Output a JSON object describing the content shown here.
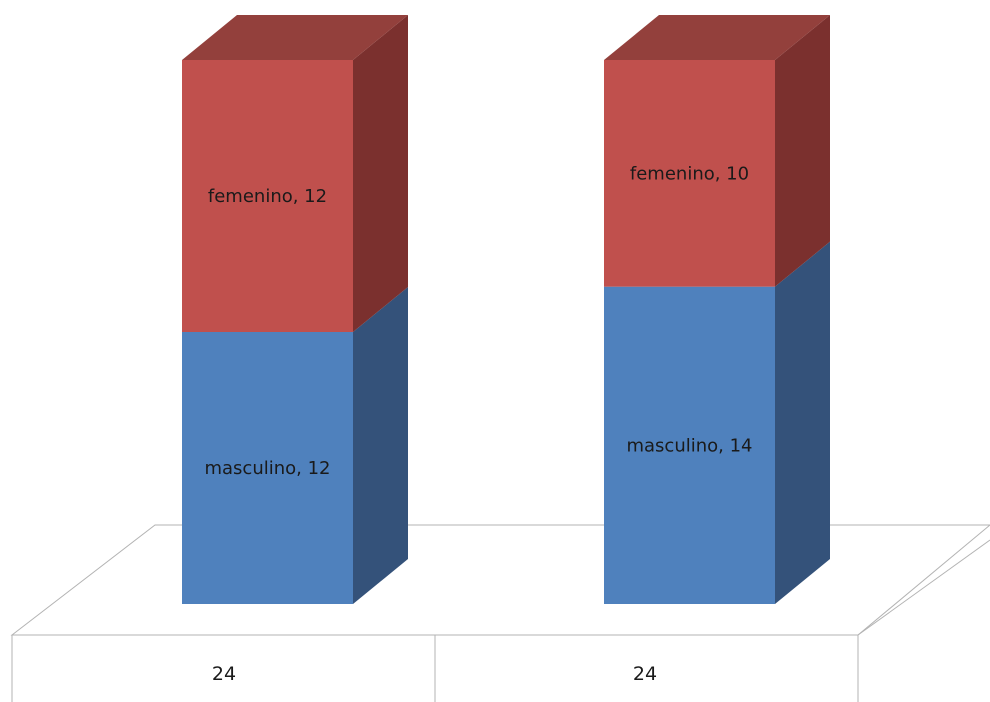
{
  "chart_data": {
    "type": "bar",
    "stacked": true,
    "three_d": true,
    "categories": [
      "24",
      "24"
    ],
    "series": [
      {
        "name": "masculino",
        "values": [
          12,
          14
        ],
        "color": "#4f81bd",
        "side_color": "#34527a"
      },
      {
        "name": "femenino",
        "values": [
          12,
          10
        ],
        "color": "#c0504d",
        "side_color": "#7b302e",
        "top_color": "#93403c"
      }
    ],
    "data_labels": [
      [
        "masculino, 12",
        "masculino, 14"
      ],
      [
        "femenino, 12",
        "femenino, 10"
      ]
    ],
    "legend": "none",
    "grid": false,
    "ylim": [
      0,
      24
    ]
  }
}
